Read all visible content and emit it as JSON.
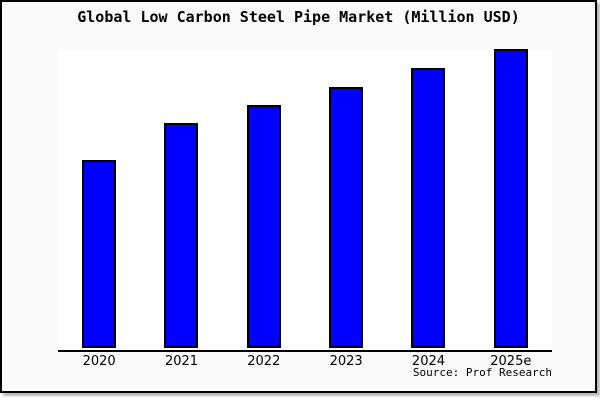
{
  "chart_data": {
    "type": "bar",
    "title": "Global Low Carbon Steel Pipe Market (Million USD)",
    "categories": [
      "2020",
      "2021",
      "2022",
      "2023",
      "2024",
      "2025e"
    ],
    "values": [
      62.8,
      75.1,
      81.4,
      87.4,
      93.7,
      100
    ],
    "values_note": "No y-axis scale is shown in the image; values are relative bar heights as a percentage of the tallest (2025e) bar.",
    "xlabel": "",
    "ylabel": "",
    "ylim": [
      0,
      100
    ],
    "grid": false,
    "legend": "none",
    "bar_color": "#0000ff",
    "bar_edge_color": "#000000",
    "plot_bg": "#ffffff",
    "page_bg": "#fafafa",
    "frame_border_color": "#000000",
    "source_label": "Source: Prof Research"
  }
}
